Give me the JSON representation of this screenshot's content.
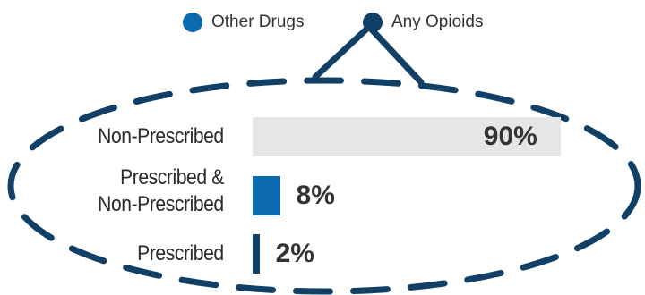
{
  "legend": {
    "items": [
      {
        "label": "Other Drugs",
        "color": "#0a6aad"
      },
      {
        "label": "Any Opioids",
        "color": "#123f66"
      }
    ]
  },
  "chart_data": {
    "type": "bar",
    "orientation": "horizontal",
    "categories": [
      "Non-Prescribed",
      "Prescribed & Non-Prescribed",
      "Prescribed"
    ],
    "category_lines": [
      [
        "Non-Prescribed"
      ],
      [
        "Prescribed &",
        "Non-Prescribed"
      ],
      [
        "Prescribed"
      ]
    ],
    "values": [
      90,
      8,
      2
    ],
    "value_labels": [
      "90%",
      "8%",
      "2%"
    ],
    "bar_colors": [
      "#e6e6e6",
      "#0a6aad",
      "#123f66"
    ],
    "xlim": [
      0,
      100
    ],
    "legend_position": "top",
    "grid": false
  }
}
